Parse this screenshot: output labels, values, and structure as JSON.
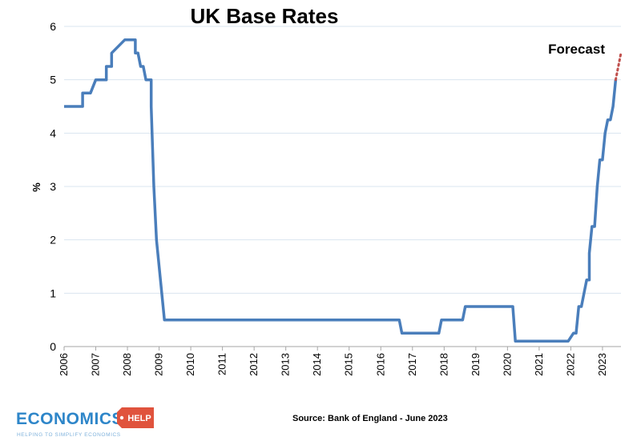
{
  "chart_data": {
    "type": "line",
    "title": "UK Base Rates",
    "xlabel": "",
    "ylabel": "%",
    "xlim": [
      "2006-01",
      "2023-07"
    ],
    "ylim": [
      0,
      6
    ],
    "y_ticks": [
      "0",
      "1",
      "2",
      "3",
      "4",
      "5",
      "6"
    ],
    "x_ticks": [
      "2006",
      "2007",
      "2008",
      "2009",
      "2010",
      "2011",
      "2012",
      "2013",
      "2014",
      "2015",
      "2016",
      "2017",
      "2018",
      "2019",
      "2020",
      "2021",
      "2022",
      "2023"
    ],
    "grid": "horizontal",
    "series": [
      {
        "color": "#4a7ebb",
        "points": [
          [
            "2006-01",
            4.5
          ],
          [
            "2006-08",
            4.5
          ],
          [
            "2006-08",
            4.75
          ],
          [
            "2006-11",
            4.75
          ],
          [
            "2007-01",
            5.0
          ],
          [
            "2007-05",
            5.0
          ],
          [
            "2007-05",
            5.25
          ],
          [
            "2007-07",
            5.25
          ],
          [
            "2007-07",
            5.5
          ],
          [
            "2007-12",
            5.75
          ],
          [
            "2008-04",
            5.75
          ],
          [
            "2008-04",
            5.5
          ],
          [
            "2008-05",
            5.5
          ],
          [
            "2008-06",
            5.25
          ],
          [
            "2008-07",
            5.25
          ],
          [
            "2008-08",
            5.0
          ],
          [
            "2008-10",
            5.0
          ],
          [
            "2008-10",
            4.5
          ],
          [
            "2008-11",
            3.0
          ],
          [
            "2008-12",
            2.0
          ],
          [
            "2009-01",
            1.5
          ],
          [
            "2009-03",
            0.5
          ],
          [
            "2016-08",
            0.5
          ],
          [
            "2016-09",
            0.25
          ],
          [
            "2017-11",
            0.25
          ],
          [
            "2017-12",
            0.5
          ],
          [
            "2018-08",
            0.5
          ],
          [
            "2018-09",
            0.75
          ],
          [
            "2020-03",
            0.75
          ],
          [
            "2020-04",
            0.1
          ],
          [
            "2021-12",
            0.1
          ],
          [
            "2022-02",
            0.25
          ],
          [
            "2022-03",
            0.25
          ],
          [
            "2022-04",
            0.75
          ],
          [
            "2022-05",
            0.75
          ],
          [
            "2022-06",
            1.0
          ],
          [
            "2022-07",
            1.25
          ],
          [
            "2022-08",
            1.25
          ],
          [
            "2022-08",
            1.75
          ],
          [
            "2022-09",
            2.25
          ],
          [
            "2022-10",
            2.25
          ],
          [
            "2022-11",
            3.0
          ],
          [
            "2022-12",
            3.5
          ],
          [
            "2023-01",
            3.5
          ],
          [
            "2023-02",
            4.0
          ],
          [
            "2023-03",
            4.25
          ],
          [
            "2023-04",
            4.25
          ],
          [
            "2023-05",
            4.5
          ],
          [
            "2023-06",
            5.0
          ]
        ]
      },
      {
        "color": "#c0504d",
        "style": "dotted",
        "points": [
          [
            "2023-06",
            5.0
          ],
          [
            "2023-07",
            5.25
          ],
          [
            "2023-08",
            5.5
          ]
        ]
      }
    ],
    "annotations": [
      "Forecast"
    ]
  },
  "source": "Source: Bank of England - June 2023",
  "logo": {
    "main": "ECONOMICS",
    "badge": "HELP",
    "tagline": "HELPING TO SIMPLIFY ECONOMICS",
    "color": "#2e86c9",
    "badge_color": "#e0533d"
  }
}
